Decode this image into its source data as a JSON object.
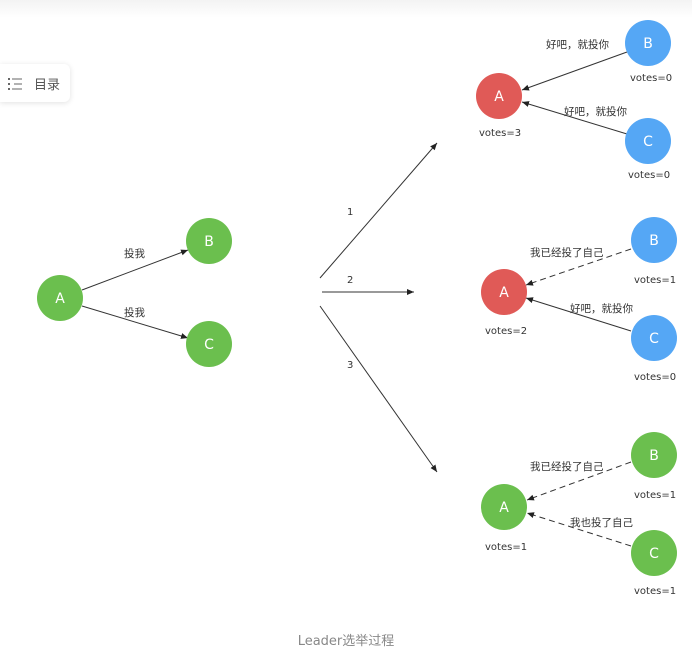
{
  "toc": {
    "label": "目录",
    "icon": "list-icon"
  },
  "colors": {
    "green": "#6bbf4e",
    "red": "#e05a57",
    "blue": "#55a7f5"
  },
  "initial": {
    "a": "A",
    "b": "B",
    "c": "C",
    "edge_ab": "投我",
    "edge_ac": "投我"
  },
  "branches": {
    "b1": "1",
    "b2": "2",
    "b3": "3"
  },
  "case1": {
    "a": "A",
    "a_votes": "votes=3",
    "b": "B",
    "b_votes": "votes=0",
    "b_msg": "好吧，就投你",
    "c": "C",
    "c_votes": "votes=0",
    "c_msg": "好吧，就投你"
  },
  "case2": {
    "a": "A",
    "a_votes": "votes=2",
    "b": "B",
    "b_votes": "votes=1",
    "b_msg": "我已经投了自己",
    "c": "C",
    "c_votes": "votes=0",
    "c_msg": "好吧，就投你"
  },
  "case3": {
    "a": "A",
    "a_votes": "votes=1",
    "b": "B",
    "b_votes": "votes=1",
    "b_msg": "我已经投了自己",
    "c": "C",
    "c_votes": "votes=1",
    "c_msg": "我也投了自己"
  },
  "caption": "Leader选举过程"
}
